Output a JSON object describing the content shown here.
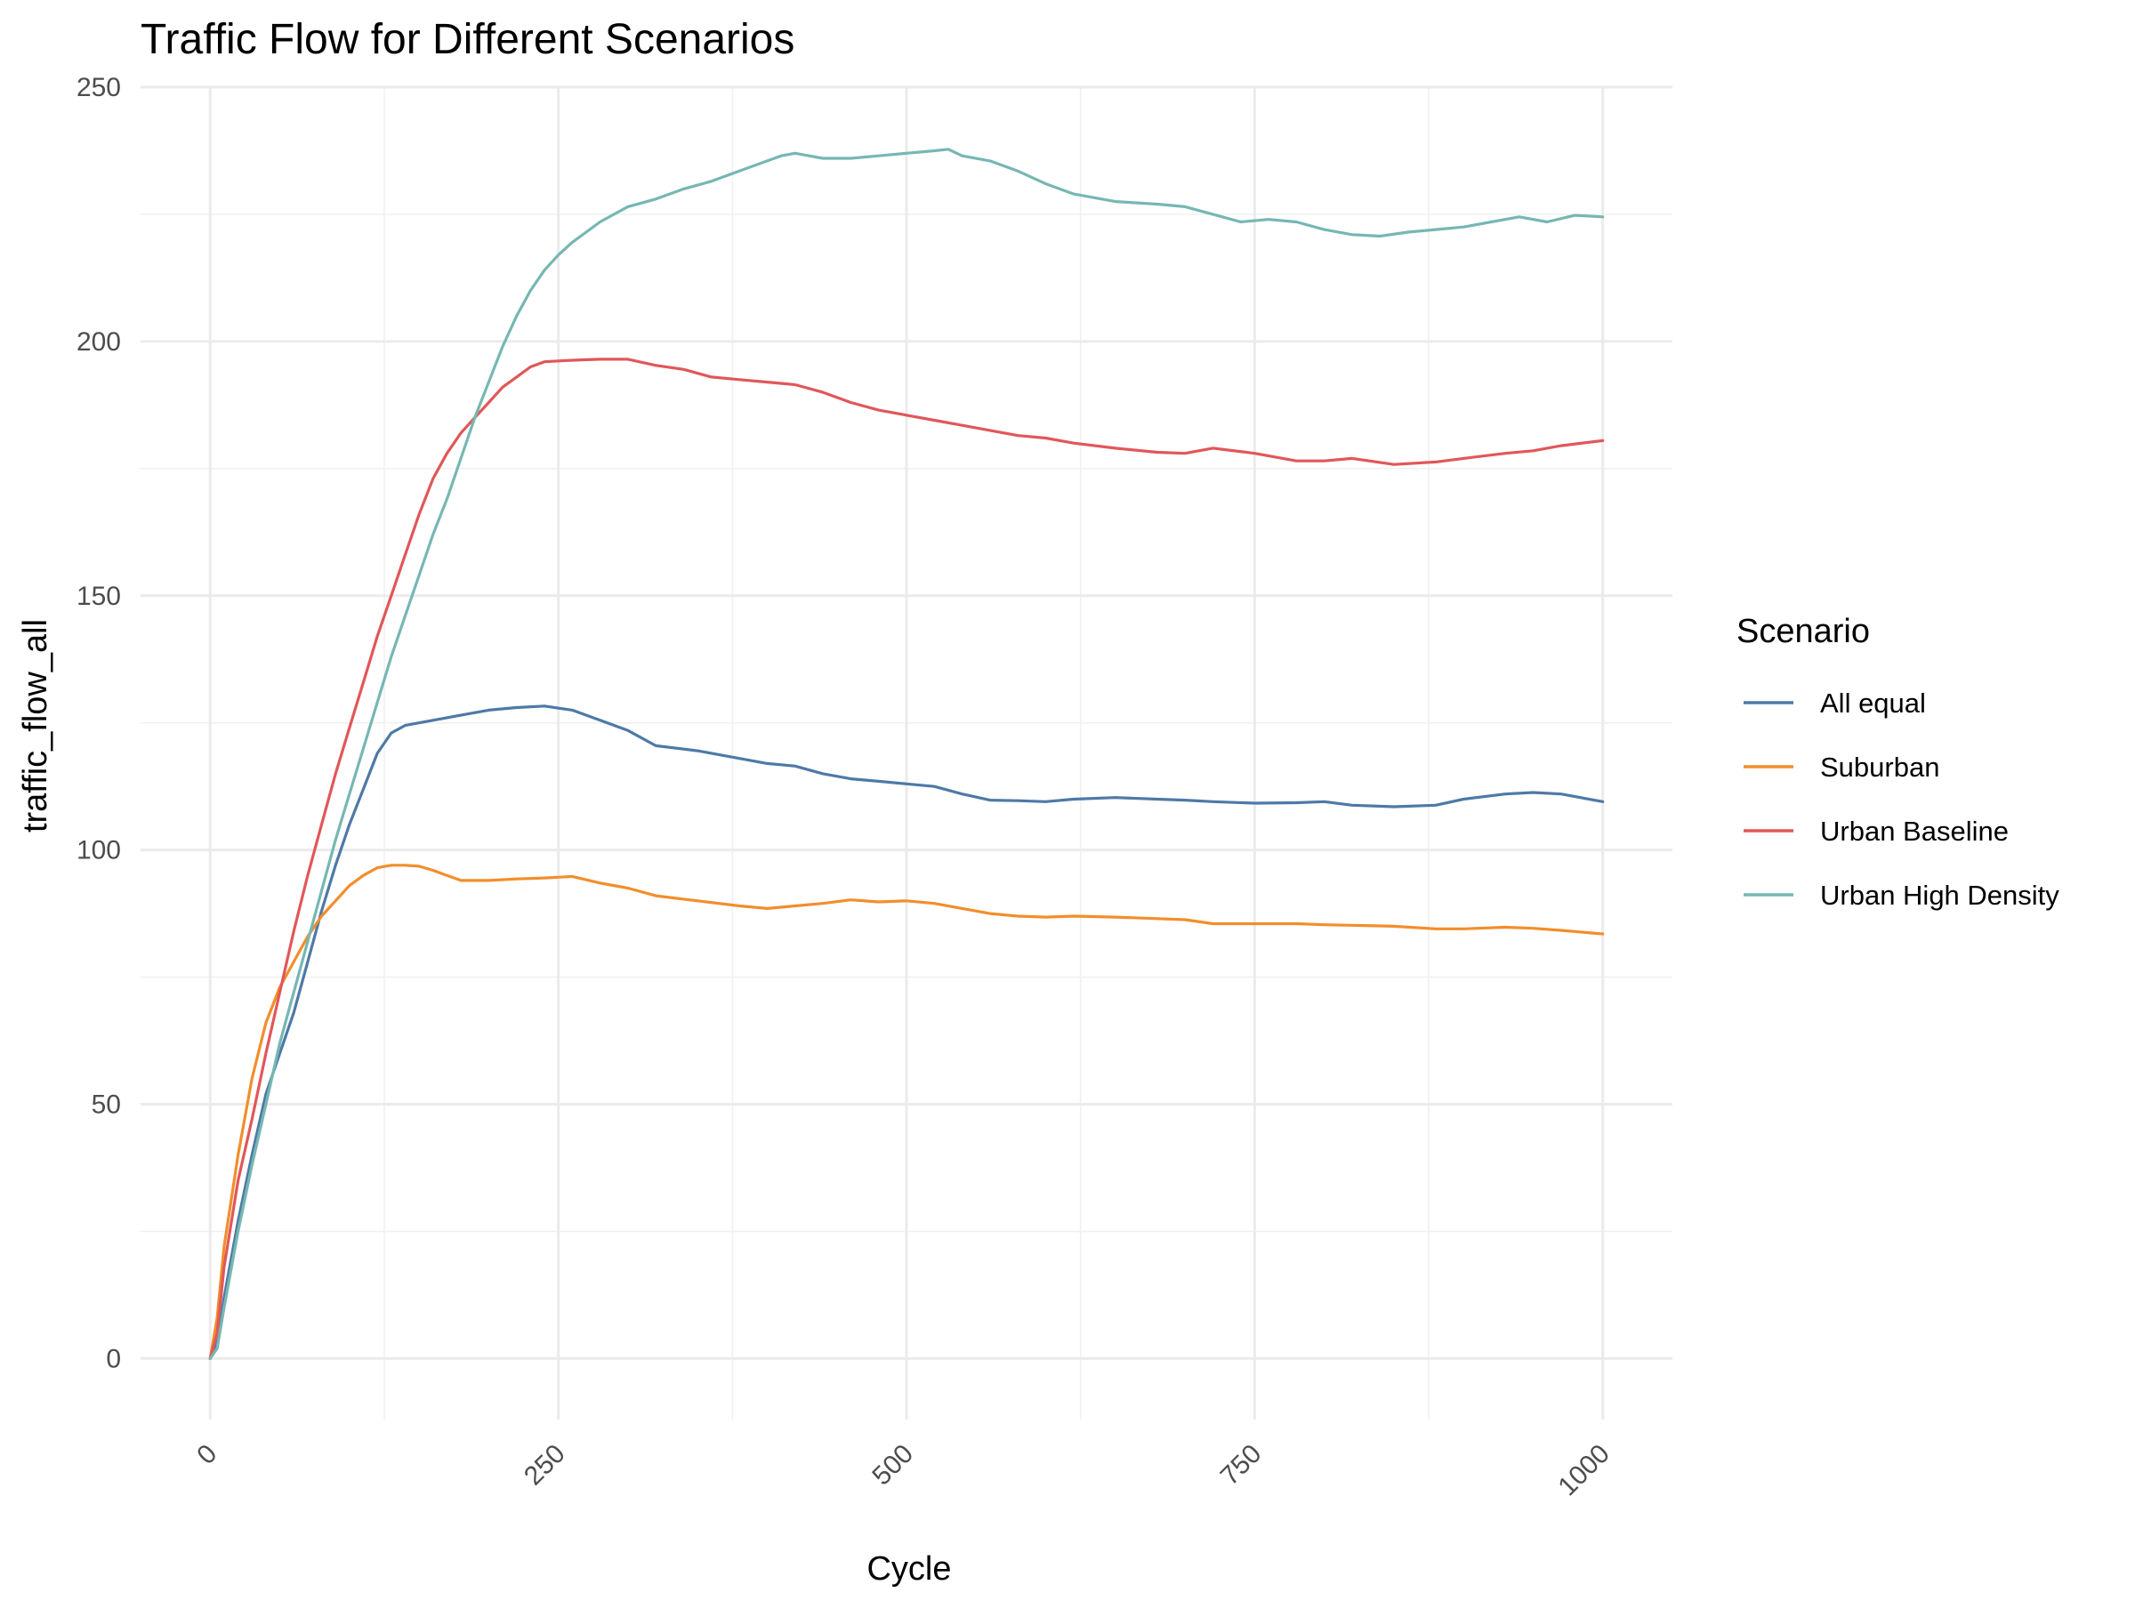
{
  "chart_data": {
    "type": "line",
    "title": "Traffic Flow for Different Scenarios",
    "xlabel": "Cycle",
    "ylabel": "traffic_flow_all",
    "xlim": [
      -50,
      1050
    ],
    "ylim": [
      -12,
      250
    ],
    "x_ticks": [
      0,
      250,
      500,
      750,
      1000
    ],
    "x_tick_labels": [
      "0",
      "250",
      "500",
      "750",
      "1000"
    ],
    "y_ticks": [
      0,
      50,
      100,
      150,
      200,
      250
    ],
    "y_tick_labels": [
      "0",
      "50",
      "100",
      "150",
      "200",
      "250"
    ],
    "grid": true,
    "legend": {
      "title": "Scenario",
      "position": "right"
    },
    "series": [
      {
        "name": "All equal",
        "color": "#4e79a7",
        "x": [
          0,
          5,
          10,
          20,
          30,
          40,
          50,
          60,
          70,
          80,
          90,
          100,
          110,
          120,
          130,
          140,
          150,
          160,
          180,
          200,
          220,
          240,
          260,
          280,
          300,
          320,
          350,
          380,
          400,
          420,
          440,
          460,
          480,
          500,
          520,
          540,
          560,
          580,
          600,
          620,
          650,
          680,
          700,
          720,
          750,
          780,
          800,
          820,
          850,
          880,
          900,
          930,
          950,
          970,
          1000
        ],
        "y": [
          0,
          3,
          12,
          27,
          40,
          52,
          60,
          68,
          78,
          88,
          97,
          105,
          112,
          119,
          123,
          124.5,
          125,
          125.5,
          126.5,
          127.5,
          128,
          128.3,
          127.5,
          125.5,
          123.5,
          120.5,
          119.5,
          118,
          117,
          116.5,
          115,
          114,
          113.5,
          113,
          112.5,
          111,
          109.8,
          109.7,
          109.5,
          110,
          110.3,
          110,
          109.8,
          109.5,
          109.2,
          109.3,
          109.5,
          108.8,
          108.5,
          108.8,
          110,
          111,
          111.3,
          111,
          109.5
        ]
      },
      {
        "name": "Suburban",
        "color": "#f28e2b",
        "x": [
          0,
          5,
          10,
          20,
          30,
          40,
          50,
          60,
          70,
          80,
          90,
          100,
          110,
          120,
          130,
          140,
          150,
          160,
          170,
          180,
          200,
          220,
          240,
          260,
          280,
          300,
          320,
          350,
          380,
          400,
          420,
          440,
          460,
          480,
          500,
          520,
          540,
          560,
          580,
          600,
          620,
          650,
          680,
          700,
          720,
          750,
          780,
          800,
          820,
          850,
          880,
          900,
          930,
          950,
          970,
          1000
        ],
        "y": [
          0,
          8,
          22,
          40,
          55,
          66,
          73,
          78,
          83,
          87,
          90,
          93,
          95,
          96.5,
          97,
          97,
          96.8,
          96,
          95,
          94,
          94,
          94.3,
          94.5,
          94.8,
          93.5,
          92.5,
          91,
          90,
          89,
          88.5,
          89,
          89.5,
          90.2,
          89.8,
          90,
          89.5,
          88.5,
          87.5,
          87,
          86.8,
          87,
          86.8,
          86.5,
          86.3,
          85.5,
          85.5,
          85.5,
          85.3,
          85.2,
          85,
          84.5,
          84.5,
          84.8,
          84.6,
          84.2,
          83.5
        ]
      },
      {
        "name": "Urban Baseline",
        "color": "#e15759",
        "x": [
          0,
          5,
          10,
          20,
          30,
          40,
          50,
          60,
          70,
          80,
          90,
          100,
          110,
          120,
          130,
          140,
          150,
          160,
          170,
          180,
          190,
          200,
          210,
          220,
          230,
          240,
          260,
          280,
          300,
          320,
          340,
          360,
          380,
          400,
          420,
          440,
          460,
          480,
          500,
          520,
          540,
          560,
          580,
          600,
          620,
          650,
          680,
          700,
          720,
          750,
          780,
          800,
          820,
          850,
          880,
          900,
          930,
          950,
          970,
          1000
        ],
        "y": [
          0,
          5,
          18,
          35,
          47,
          60,
          72,
          84,
          95,
          105,
          115,
          124,
          133,
          142,
          150,
          158,
          166,
          173,
          178,
          182,
          185,
          188,
          191,
          193,
          195,
          196,
          196.3,
          196.5,
          196.5,
          195.3,
          194.5,
          193,
          192.5,
          192,
          191.5,
          190,
          188,
          186.5,
          185.5,
          184.5,
          183.5,
          182.5,
          181.5,
          181,
          180,
          179,
          178.2,
          178,
          179,
          178,
          176.5,
          176.5,
          177,
          175.8,
          176.3,
          177,
          178,
          178.5,
          179.5,
          180.5
        ]
      },
      {
        "name": "Urban High Density",
        "color": "#76b7b2",
        "x": [
          0,
          5,
          10,
          20,
          30,
          40,
          50,
          60,
          70,
          80,
          90,
          100,
          110,
          120,
          130,
          140,
          150,
          160,
          170,
          180,
          190,
          200,
          210,
          220,
          230,
          240,
          250,
          260,
          270,
          280,
          290,
          300,
          320,
          340,
          360,
          380,
          400,
          410,
          420,
          430,
          440,
          460,
          480,
          500,
          520,
          530,
          540,
          560,
          580,
          600,
          620,
          650,
          680,
          700,
          720,
          740,
          760,
          780,
          800,
          820,
          840,
          860,
          880,
          900,
          920,
          940,
          960,
          980,
          1000
        ],
        "y": [
          0,
          2,
          10,
          25,
          38,
          50,
          62,
          72,
          82,
          92,
          102,
          111,
          120,
          129,
          138,
          146,
          154,
          162,
          169,
          177,
          185,
          192,
          199,
          205,
          210,
          214,
          217,
          219.5,
          221.5,
          223.5,
          225,
          226.5,
          228,
          230,
          231.5,
          233.5,
          235.5,
          236.5,
          237,
          236.5,
          236,
          236,
          236.5,
          237,
          237.5,
          237.8,
          236.5,
          235.5,
          233.5,
          231,
          229,
          227.5,
          227,
          226.5,
          225,
          223.5,
          224,
          223.5,
          222,
          221,
          220.7,
          221.5,
          222,
          222.5,
          223.5,
          224.5,
          223.5,
          224.8,
          224.5
        ]
      }
    ]
  }
}
